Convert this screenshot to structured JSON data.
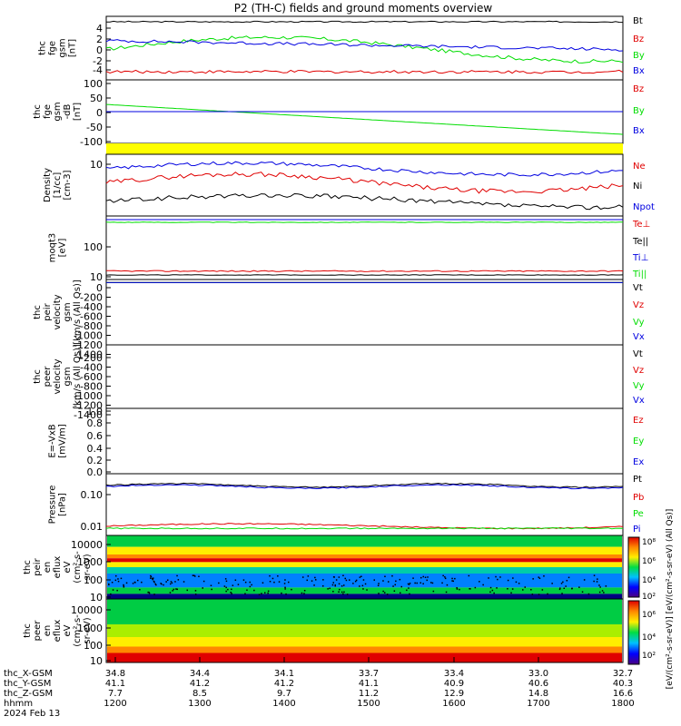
{
  "title": "P2 (TH-C) fields and ground moments overview",
  "colors": {
    "black": "#000000",
    "red": "#e00000",
    "green": "#00dd00",
    "blue": "#0000e0",
    "yellow": "#ffff00"
  },
  "chart_data": [
    {
      "type": "line",
      "ylabel": [
        "thc",
        "fge",
        "gsm",
        "[nT]"
      ],
      "yticks": [
        "4",
        "2",
        "0",
        "-2",
        "-4"
      ],
      "ylim": [
        -5,
        6
      ],
      "series": [
        {
          "name": "Bt",
          "color": "black"
        },
        {
          "name": "Bz",
          "color": "red"
        },
        {
          "name": "By",
          "color": "green"
        },
        {
          "name": "Bx",
          "color": "blue"
        }
      ]
    },
    {
      "type": "line",
      "ylabel": [
        "thc",
        "fge",
        "gsm",
        "-dB",
        "[nT]"
      ],
      "yticks": [
        "100",
        "50",
        "0",
        "-50",
        "-100"
      ],
      "ylim": [
        -120,
        110
      ],
      "series": [
        {
          "name": "Bz",
          "color": "red"
        },
        {
          "name": "By",
          "color": "green"
        },
        {
          "name": "Bx",
          "color": "blue"
        }
      ]
    },
    {
      "type": "line",
      "ylabel": [
        "Density",
        "[1/cc]",
        "[cm-3]"
      ],
      "yticks": [
        "10"
      ],
      "log": true,
      "series": [
        {
          "name": "Ne",
          "color": "red"
        },
        {
          "name": "Ni",
          "color": "black"
        },
        {
          "name": "Npot",
          "color": "blue"
        }
      ]
    },
    {
      "type": "line",
      "ylabel": [
        "moqt3",
        "[eV]"
      ],
      "yticks": [
        "100",
        "10"
      ],
      "log": true,
      "series": [
        {
          "name": "Te⊥",
          "color": "red"
        },
        {
          "name": "Te||",
          "color": "black"
        },
        {
          "name": "Ti⊥",
          "color": "blue"
        },
        {
          "name": "Ti||",
          "color": "green"
        }
      ]
    },
    {
      "type": "line",
      "ylabel": [
        "thc",
        "peir",
        "velocity",
        "gsm",
        "[km/s (All Qs)]"
      ],
      "yticks": [
        "0",
        "-200",
        "-400",
        "-600",
        "-800",
        "-1000",
        "-1200",
        "-1400"
      ],
      "ylim": [
        -1450,
        30
      ],
      "series": [
        {
          "name": "Vt",
          "color": "black"
        },
        {
          "name": "Vz",
          "color": "red"
        },
        {
          "name": "Vy",
          "color": "green"
        },
        {
          "name": "Vx",
          "color": "blue"
        }
      ]
    },
    {
      "type": "line",
      "ylabel": [
        "thc",
        "peer",
        "velocity",
        "gsm",
        "[km/s (All Qs)]"
      ],
      "yticks": [
        "-200",
        "-400",
        "-600",
        "-800",
        "-1000",
        "-1200",
        "-1400"
      ],
      "ylim": [
        -1450,
        -80
      ],
      "series": [
        {
          "name": "Vt",
          "color": "black"
        },
        {
          "name": "Vz",
          "color": "red"
        },
        {
          "name": "Vy",
          "color": "green"
        },
        {
          "name": "Vx",
          "color": "blue"
        }
      ]
    },
    {
      "type": "line",
      "ylabel": [
        "E=-VxB",
        "[mV/m]"
      ],
      "yticks": [
        "1.0",
        "0.8",
        "0.6",
        "0.4",
        "0.2",
        "0.0"
      ],
      "ylim": [
        -0.05,
        1.02
      ],
      "series": [
        {
          "name": "Ez",
          "color": "red"
        },
        {
          "name": "Ey",
          "color": "green"
        },
        {
          "name": "Ex",
          "color": "blue"
        }
      ]
    },
    {
      "type": "line",
      "ylabel": [
        "Pressure",
        "[nPa]"
      ],
      "yticks": [
        "0.10",
        "0.01"
      ],
      "log": true,
      "series": [
        {
          "name": "Pt",
          "color": "black"
        },
        {
          "name": "Pb",
          "color": "red"
        },
        {
          "name": "Pe",
          "color": "green"
        },
        {
          "name": "Pi",
          "color": "blue"
        }
      ]
    },
    {
      "type": "heatmap",
      "ylabel": [
        "thc",
        "peir",
        "en",
        "eflux",
        "eV",
        "(cm²-s-",
        "sr-eV)"
      ],
      "yticks": [
        "10000",
        "1000",
        "100",
        "10"
      ]
    },
    {
      "type": "heatmap",
      "ylabel": [
        "thc",
        "peer",
        "en",
        "eflux",
        "eV",
        "(cm²-s-",
        "sr-eV)"
      ],
      "yticks": [
        "10000",
        "1000",
        "100",
        "10"
      ]
    }
  ],
  "colorbar": {
    "ticks": [
      "10⁸",
      "10⁶",
      "10⁴",
      "10²",
      "10⁶",
      "10⁴",
      "10²"
    ],
    "label": "[eV/(cm²-s-sr-eV)] [eV/(cm²-s-sr-eV) (All Qs)]"
  },
  "xaxis": {
    "rows": [
      {
        "label": "thc_X-GSM",
        "values": [
          "34.8",
          "34.4",
          "34.1",
          "33.7",
          "33.4",
          "33.0",
          "32.7"
        ]
      },
      {
        "label": "thc_Y-GSM",
        "values": [
          "41.1",
          "41.2",
          "41.2",
          "41.1",
          "40.9",
          "40.6",
          "40.3"
        ]
      },
      {
        "label": "thc_Z-GSM",
        "values": [
          "7.7",
          "8.5",
          "9.7",
          "11.2",
          "12.9",
          "14.8",
          "16.6"
        ]
      },
      {
        "label": "hhmm",
        "values": [
          "1200",
          "1300",
          "1400",
          "1500",
          "1600",
          "1700",
          "1800"
        ]
      }
    ],
    "date": "2024 Feb 13"
  }
}
